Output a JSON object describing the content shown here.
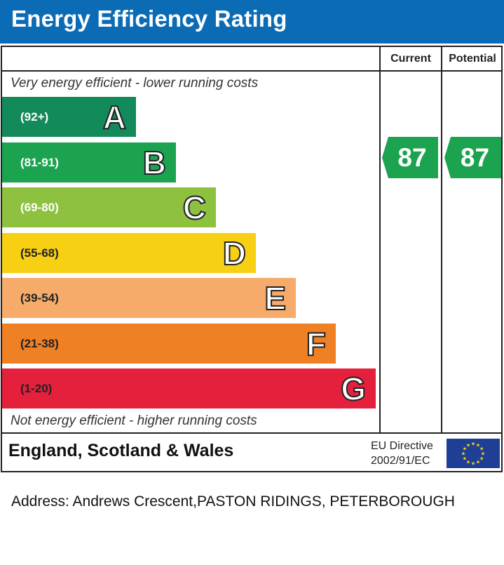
{
  "title": "Energy Efficiency Rating",
  "columns": {
    "current": "Current",
    "potential": "Potential"
  },
  "top_note": "Very energy efficient - lower running costs",
  "bottom_note": "Not energy efficient - higher running costs",
  "chart_data": {
    "type": "bar",
    "bands": [
      {
        "letter": "A",
        "range": "(92+)",
        "color": "#138a5a"
      },
      {
        "letter": "B",
        "range": "(81-91)",
        "color": "#1ba350"
      },
      {
        "letter": "C",
        "range": "(69-80)",
        "color": "#8dc13f"
      },
      {
        "letter": "D",
        "range": "(55-68)",
        "color": "#f7cf13"
      },
      {
        "letter": "E",
        "range": "(39-54)",
        "color": "#f6ab6b"
      },
      {
        "letter": "F",
        "range": "(21-38)",
        "color": "#ef8023"
      },
      {
        "letter": "G",
        "range": "(1-20)",
        "color": "#e4203d"
      }
    ],
    "current": 87,
    "potential": 87,
    "rating_color": "#1ba350"
  },
  "footer": {
    "region": "England, Scotland & Wales",
    "directive_line1": "EU Directive",
    "directive_line2": "2002/91/EC",
    "flag_icon": "eu-flag-icon"
  },
  "address": "Address: Andrews Crescent,PASTON RIDINGS, PETERBOROUGH"
}
